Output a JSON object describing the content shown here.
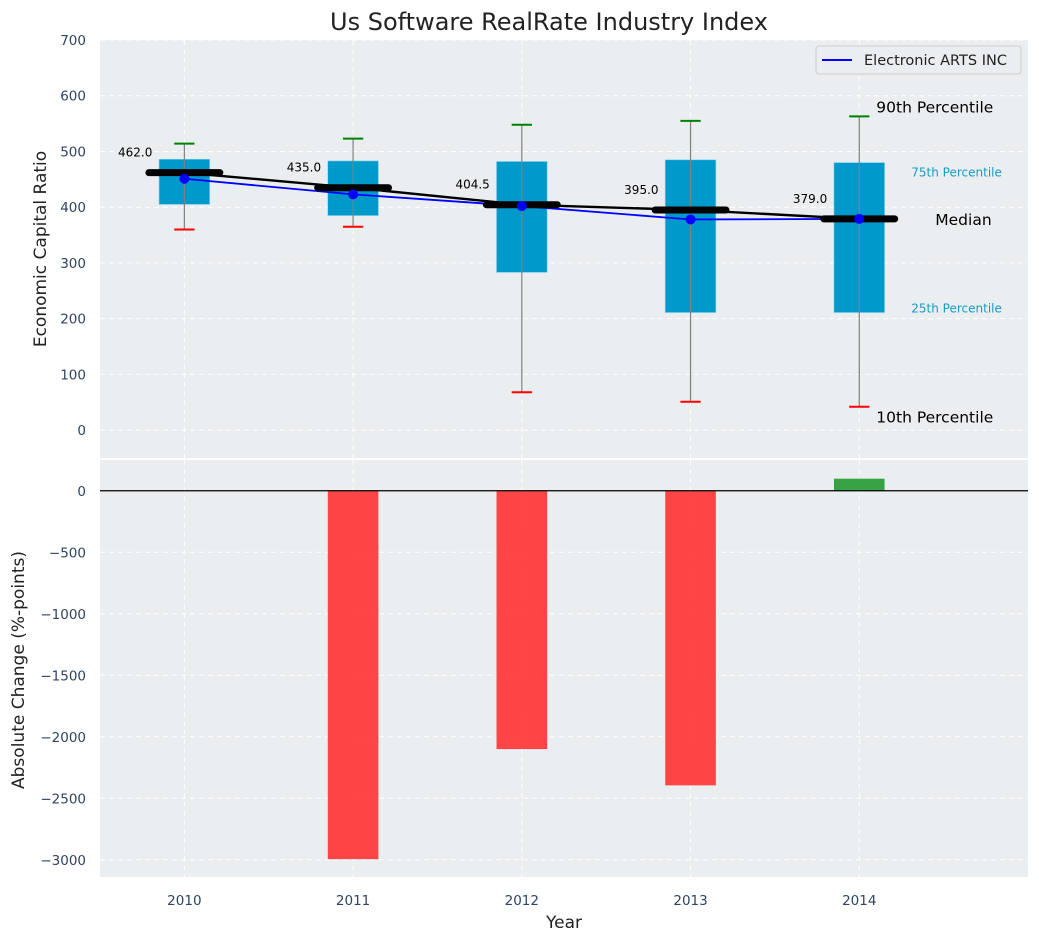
{
  "chart_data": [
    {
      "type": "box",
      "title": "Us Software RealRate Industry Index",
      "xlabel": "",
      "ylabel": "Economic Capital Ratio",
      "ylim": [
        -50,
        700
      ],
      "xlim": [
        2009.5,
        2015.0
      ],
      "yticks": [
        0,
        100,
        200,
        300,
        400,
        500,
        600,
        700
      ],
      "grid": true,
      "legend": {
        "placement": "top-right",
        "entries": [
          {
            "label": "Electronic ARTS INC",
            "color": "#0000ff"
          }
        ]
      },
      "categories": [
        2010,
        2011,
        2012,
        2013,
        2014
      ],
      "series": [
        {
          "name": "10th Percentile",
          "values": [
            360,
            365,
            68,
            51,
            42
          ],
          "color": "#ff0000"
        },
        {
          "name": "25th Percentile",
          "values": [
            405,
            385,
            283,
            211,
            211
          ],
          "color": "#0099cc"
        },
        {
          "name": "Median",
          "values": [
            462.0,
            435.0,
            404.5,
            395.0,
            379.0
          ],
          "color": "#000000"
        },
        {
          "name": "75th Percentile",
          "values": [
            486,
            483,
            482,
            485,
            480
          ],
          "color": "#0099cc"
        },
        {
          "name": "90th Percentile",
          "values": [
            514,
            523,
            548,
            555,
            563
          ],
          "color": "#008000"
        },
        {
          "name": "Electronic ARTS INC",
          "values": [
            451,
            423,
            402,
            378,
            379
          ],
          "color": "#0000ff"
        }
      ],
      "median_labels": [
        "462.0",
        "435.0",
        "404.5",
        "395.0",
        "379.0"
      ],
      "annotations": {
        "p90": "90th Percentile",
        "p75": "75th Percentile",
        "median": "Median",
        "p25": "25th Percentile",
        "p10": "10th Percentile"
      }
    },
    {
      "type": "bar",
      "xlabel": "Year",
      "ylabel": "Absolute Change (%-points)",
      "ylim": [
        -3140,
        250
      ],
      "xlim": [
        2009.5,
        2015.0
      ],
      "yticks": [
        0,
        -500,
        -1000,
        -1500,
        -2000,
        -2500,
        -3000
      ],
      "ytick_labels": [
        "0",
        "−500",
        "−1000",
        "−1500",
        "−2000",
        "−2500",
        "−3000"
      ],
      "grid": true,
      "categories": [
        2010,
        2011,
        2012,
        2013,
        2014
      ],
      "values": [
        0,
        -2995,
        -2100,
        -2395,
        98
      ],
      "positive_color": "#2e9e3a",
      "negative_color": "#ff3b3b"
    }
  ],
  "colors": {
    "panel_bg": "#eaeef0",
    "grid": "#ffffff",
    "box_fill": "#0099cc",
    "whisker": "#808080"
  }
}
